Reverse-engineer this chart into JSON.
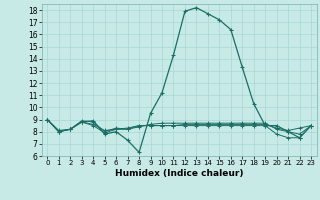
{
  "title": "",
  "xlabel": "Humidex (Indice chaleur)",
  "background_color": "#c8eae6",
  "line_color": "#1a6e65",
  "xlim": [
    -0.5,
    23.5
  ],
  "ylim": [
    6,
    18.5
  ],
  "yticks": [
    6,
    7,
    8,
    9,
    10,
    11,
    12,
    13,
    14,
    15,
    16,
    17,
    18
  ],
  "xticks": [
    0,
    1,
    2,
    3,
    4,
    5,
    6,
    7,
    8,
    9,
    10,
    11,
    12,
    13,
    14,
    15,
    16,
    17,
    18,
    19,
    20,
    21,
    22,
    23
  ],
  "line_main": {
    "x": [
      0,
      1,
      2,
      3,
      4,
      5,
      6,
      7,
      8,
      9,
      10,
      11,
      12,
      13,
      14,
      15,
      16,
      17,
      18,
      19,
      20,
      21,
      22,
      23
    ],
    "y": [
      9.0,
      8.0,
      8.2,
      8.8,
      8.9,
      7.8,
      8.0,
      7.3,
      6.3,
      9.5,
      11.2,
      14.3,
      17.9,
      18.2,
      17.7,
      17.2,
      16.4,
      13.3,
      10.3,
      8.5,
      8.5,
      8.0,
      7.5,
      8.5
    ]
  },
  "line_flat1": {
    "x": [
      0,
      1,
      2,
      3,
      4,
      5,
      6,
      7,
      8,
      9,
      10,
      11,
      12,
      13,
      14,
      15,
      16,
      17,
      18,
      19,
      20,
      21,
      22,
      23
    ],
    "y": [
      9.0,
      8.1,
      8.2,
      8.8,
      8.6,
      8.1,
      8.2,
      8.2,
      8.5,
      8.5,
      8.5,
      8.5,
      8.6,
      8.6,
      8.6,
      8.6,
      8.6,
      8.6,
      8.6,
      8.6,
      8.3,
      8.1,
      8.3,
      8.5
    ]
  },
  "line_flat2": {
    "x": [
      0,
      1,
      2,
      3,
      4,
      5,
      6,
      7,
      8,
      9,
      10,
      11,
      12,
      13,
      14,
      15,
      16,
      17,
      18,
      19,
      20,
      21,
      22,
      23
    ],
    "y": [
      9.0,
      8.0,
      8.2,
      8.9,
      8.8,
      8.0,
      8.3,
      8.2,
      8.4,
      8.6,
      8.7,
      8.7,
      8.7,
      8.7,
      8.7,
      8.7,
      8.7,
      8.7,
      8.7,
      8.7,
      8.2,
      8.0,
      7.8,
      8.5
    ]
  },
  "line_flat3": {
    "x": [
      0,
      1,
      2,
      3,
      4,
      5,
      6,
      7,
      8,
      9,
      10,
      11,
      12,
      13,
      14,
      15,
      16,
      17,
      18,
      19,
      20,
      21,
      22,
      23
    ],
    "y": [
      9.0,
      8.0,
      8.2,
      8.8,
      8.5,
      7.9,
      8.2,
      8.3,
      8.5,
      8.5,
      8.5,
      8.5,
      8.5,
      8.5,
      8.5,
      8.5,
      8.5,
      8.5,
      8.5,
      8.5,
      7.8,
      7.5,
      7.5,
      8.5
    ]
  }
}
